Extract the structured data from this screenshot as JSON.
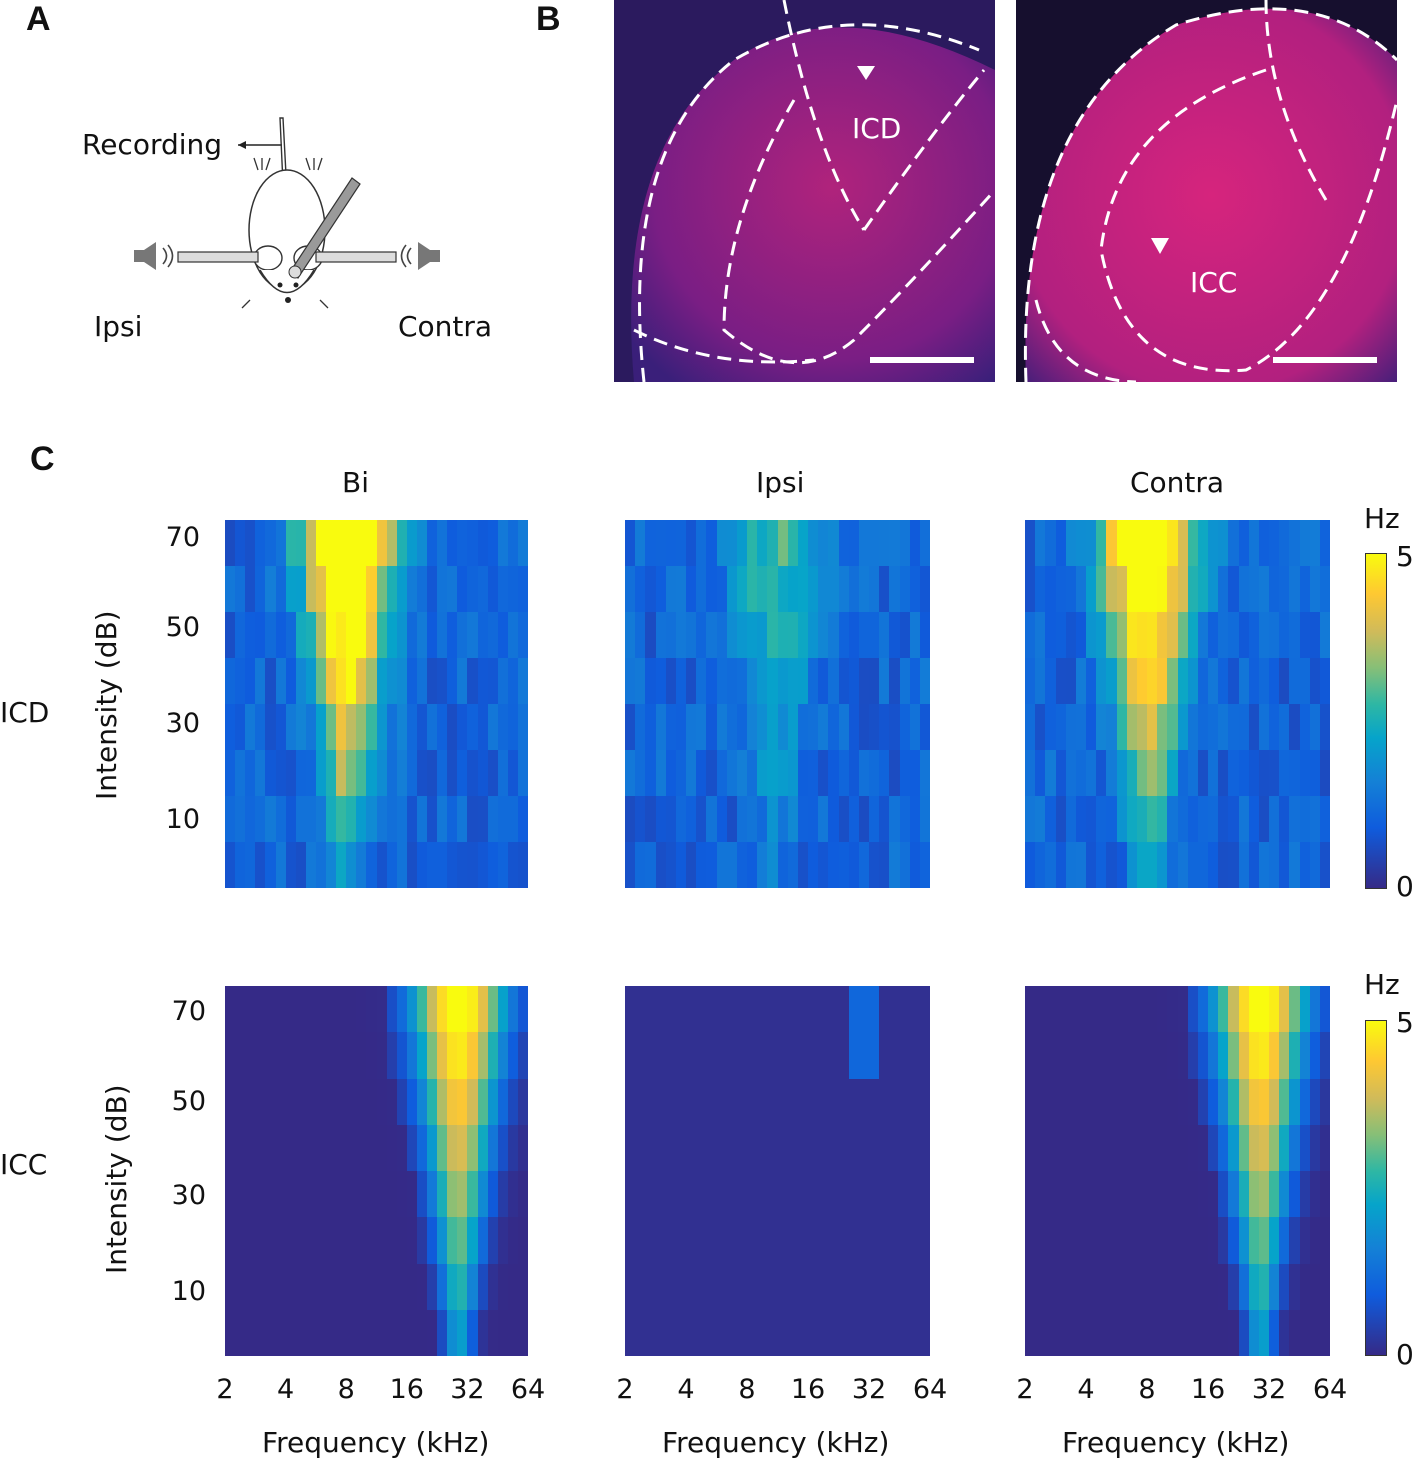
{
  "panels": {
    "a": "A",
    "b": "B",
    "c": "C"
  },
  "panel_a": {
    "recording_label": "Recording",
    "ipsi_label": "Ipsi",
    "contra_label": "Contra"
  },
  "panel_b": {
    "left_region": "ICD",
    "right_region": "ICC"
  },
  "panel_c": {
    "column_titles": [
      "Bi",
      "Ipsi",
      "Contra"
    ],
    "row_labels": [
      "ICD",
      "ICC"
    ],
    "ylabel": "Intensity (dB)",
    "xlabel": "Frequency (kHz)",
    "colorbar_unit": "Hz",
    "colorbar_ticks": [
      "5",
      "0"
    ],
    "y_ticks": [
      "70",
      "50",
      "30",
      "10"
    ],
    "x_ticks": [
      "2",
      "4",
      "8",
      "16",
      "32",
      "64"
    ]
  },
  "colors": {
    "low": "#352a87",
    "mid": "#2eb7a4",
    "high": "#f9fb0e",
    "histology": "#c0147a"
  },
  "chart_data": [
    {
      "type": "heatmap",
      "row": "ICD",
      "column": "Bi",
      "peak_frequency_khz": 8,
      "zlim": [
        0,
        5
      ]
    },
    {
      "type": "heatmap",
      "row": "ICD",
      "column": "Ipsi",
      "peak_frequency_khz": 11,
      "zlim": [
        0,
        5
      ]
    },
    {
      "type": "heatmap",
      "row": "ICD",
      "column": "Contra",
      "peak_frequency_khz": 8,
      "zlim": [
        0,
        5
      ]
    },
    {
      "type": "heatmap",
      "row": "ICC",
      "column": "Bi",
      "peak_frequency_khz": 30,
      "zlim": [
        0,
        5
      ]
    },
    {
      "type": "heatmap",
      "row": "ICC",
      "column": "Ipsi",
      "peak_frequency_khz": 32,
      "zlim": [
        0,
        5
      ]
    },
    {
      "type": "heatmap",
      "row": "ICC",
      "column": "Contra",
      "peak_frequency_khz": 30,
      "zlim": [
        0,
        5
      ]
    }
  ]
}
